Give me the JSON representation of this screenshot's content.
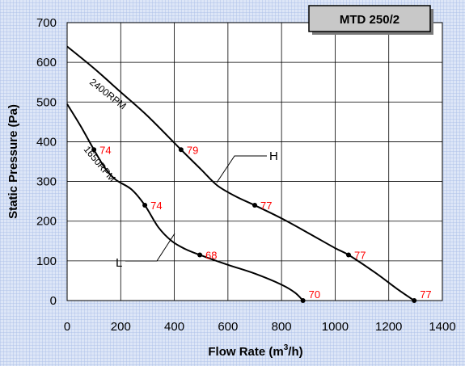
{
  "chart_data": {
    "type": "line",
    "title": "MTD 250/2",
    "xlabel": "Flow Rate (m",
    "xlabel_sup": "3",
    "xlabel_suffix": "/h)",
    "ylabel": "Static Pressure (Pa)",
    "xlim": [
      0,
      1400
    ],
    "ylim": [
      0,
      700
    ],
    "x_ticks": [
      0,
      200,
      400,
      600,
      800,
      1000,
      1200,
      1400
    ],
    "y_ticks": [
      0,
      100,
      200,
      300,
      400,
      500,
      600,
      700
    ],
    "grid": true,
    "series": [
      {
        "name": "H",
        "rpm_label": "2400RPM",
        "color": "#000000",
        "curve": [
          [
            0,
            640
          ],
          [
            100,
            585
          ],
          [
            200,
            525
          ],
          [
            300,
            465
          ],
          [
            425,
            380
          ],
          [
            500,
            330
          ],
          [
            560,
            290
          ],
          [
            630,
            262
          ],
          [
            700,
            240
          ],
          [
            800,
            207
          ],
          [
            900,
            170
          ],
          [
            1000,
            132
          ],
          [
            1050,
            115
          ],
          [
            1150,
            70
          ],
          [
            1230,
            30
          ],
          [
            1295,
            0
          ]
        ],
        "points": [
          {
            "x": 425,
            "y": 380,
            "label": "79"
          },
          {
            "x": 700,
            "y": 240,
            "label": "77"
          },
          {
            "x": 1050,
            "y": 115,
            "label": "77"
          },
          {
            "x": 1295,
            "y": 0,
            "label": "77"
          }
        ]
      },
      {
        "name": "L",
        "rpm_label": "1650RPM",
        "color": "#000000",
        "curve": [
          [
            0,
            495
          ],
          [
            50,
            440
          ],
          [
            100,
            380
          ],
          [
            140,
            335
          ],
          [
            180,
            305
          ],
          [
            240,
            280
          ],
          [
            290,
            240
          ],
          [
            340,
            185
          ],
          [
            390,
            150
          ],
          [
            440,
            130
          ],
          [
            495,
            115
          ],
          [
            600,
            90
          ],
          [
            700,
            68
          ],
          [
            800,
            40
          ],
          [
            850,
            20
          ],
          [
            880,
            0
          ]
        ],
        "points": [
          {
            "x": 100,
            "y": 380,
            "label": "74"
          },
          {
            "x": 290,
            "y": 240,
            "label": "74"
          },
          {
            "x": 495,
            "y": 115,
            "label": "68"
          },
          {
            "x": 880,
            "y": 0,
            "label": "70"
          }
        ]
      }
    ]
  }
}
